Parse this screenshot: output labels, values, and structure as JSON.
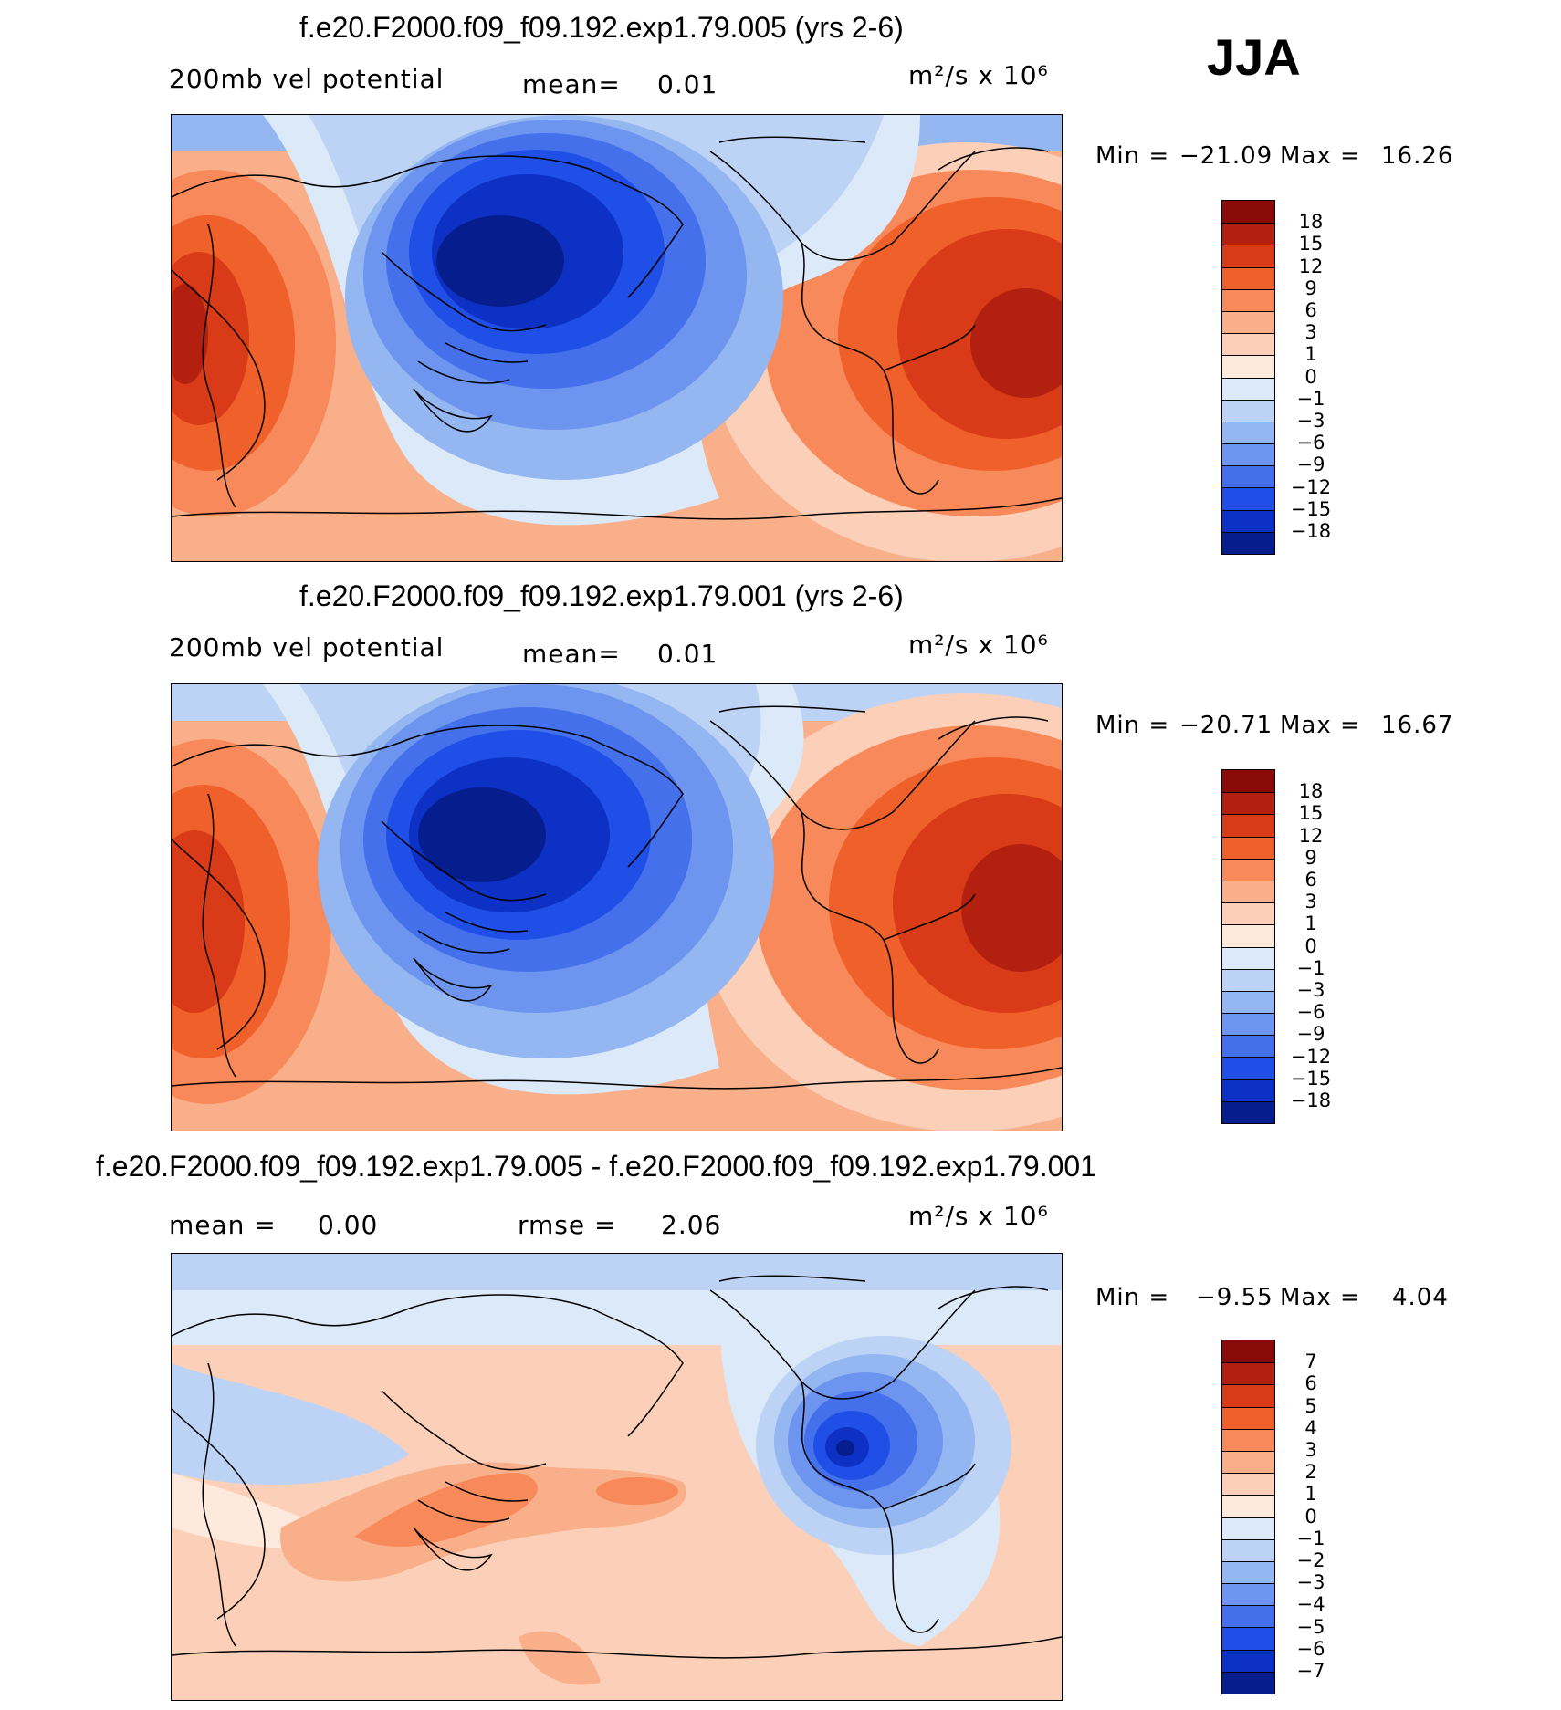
{
  "season": "JJA",
  "panels": [
    {
      "title": "f.e20.F2000.f09_f09.192.exp1.79.005 (yrs 2-6)",
      "subtitle_left": "200mb vel potential",
      "stat_label": "mean=",
      "stat_value": "0.01",
      "units": "m²/s x 10⁶",
      "min_label": "Min =",
      "min_value": "−21.09",
      "max_label": "Max =",
      "max_value": "16.26",
      "colorbar_labels": [
        "18",
        "15",
        "12",
        "9",
        "6",
        "3",
        "1",
        "0",
        "−1",
        "−3",
        "−6",
        "−9",
        "−12",
        "−15",
        "−18"
      ],
      "colorbar_colors": [
        "#8a0a0a",
        "#b3200f",
        "#d93a17",
        "#f0602a",
        "#f7895a",
        "#f9af8a",
        "#fcd0b8",
        "#fdeadd",
        "#dce9f8",
        "#bcd3f5",
        "#94b6f1",
        "#6d94ee",
        "#4470ec",
        "#1f4fe6",
        "#0c31c4",
        "#061d8e"
      ]
    },
    {
      "title": "f.e20.F2000.f09_f09.192.exp1.79.001 (yrs 2-6)",
      "subtitle_left": "200mb vel potential",
      "stat_label": "mean=",
      "stat_value": "0.01",
      "units": "m²/s x 10⁶",
      "min_label": "Min =",
      "min_value": "−20.71",
      "max_label": "Max =",
      "max_value": "16.67",
      "colorbar_labels": [
        "18",
        "15",
        "12",
        "9",
        "6",
        "3",
        "1",
        "0",
        "−1",
        "−3",
        "−6",
        "−9",
        "−12",
        "−15",
        "−18"
      ],
      "colorbar_colors": [
        "#8a0a0a",
        "#b3200f",
        "#d93a17",
        "#f0602a",
        "#f7895a",
        "#f9af8a",
        "#fcd0b8",
        "#fdeadd",
        "#dce9f8",
        "#bcd3f5",
        "#94b6f1",
        "#6d94ee",
        "#4470ec",
        "#1f4fe6",
        "#0c31c4",
        "#061d8e"
      ]
    },
    {
      "title": "f.e20.F2000.f09_f09.192.exp1.79.005 - f.e20.F2000.f09_f09.192.exp1.79.001",
      "mean_label": "mean =",
      "mean_value": "0.00",
      "stat_label": "rmse =",
      "stat_value": "2.06",
      "units": "m²/s x 10⁶",
      "min_label": "Min =",
      "min_value": "−9.55",
      "max_label": "Max =",
      "max_value": "4.04",
      "colorbar_labels": [
        "7",
        "6",
        "5",
        "4",
        "3",
        "2",
        "1",
        "0",
        "−1",
        "−2",
        "−3",
        "−4",
        "−5",
        "−6",
        "−7"
      ],
      "colorbar_colors": [
        "#8a0a0a",
        "#b3200f",
        "#d93a17",
        "#f0602a",
        "#f7895a",
        "#f9af8a",
        "#fcd0b8",
        "#fdeadd",
        "#dce9f8",
        "#bcd3f5",
        "#94b6f1",
        "#6d94ee",
        "#4470ec",
        "#1f4fe6",
        "#0c31c4",
        "#061d8e"
      ]
    }
  ]
}
